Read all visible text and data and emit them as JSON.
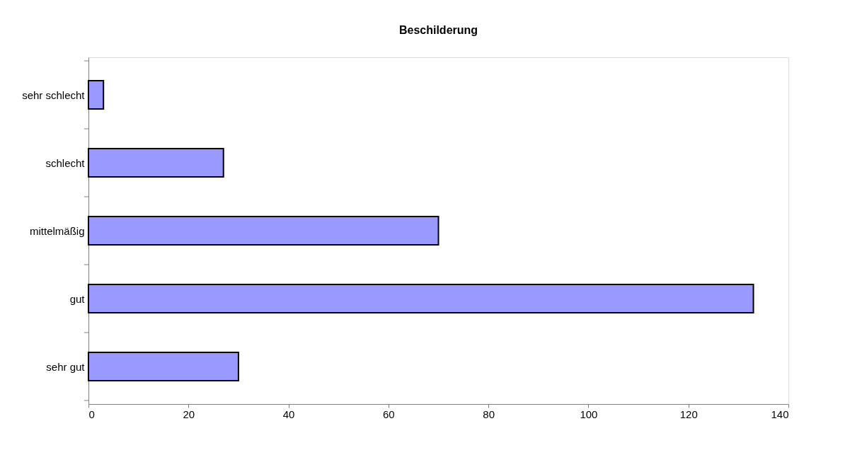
{
  "chart_data": {
    "type": "bar",
    "orientation": "horizontal",
    "title": "Beschilderung",
    "categories": [
      "sehr schlecht",
      "schlecht",
      "mittelmäßig",
      "gut",
      "sehr gut"
    ],
    "values": [
      3,
      27,
      70,
      133,
      30
    ],
    "color": "#9999ff",
    "xlim": [
      0,
      140
    ],
    "xticks": [
      0,
      20,
      40,
      60,
      80,
      100,
      120,
      140
    ],
    "grid": false
  }
}
